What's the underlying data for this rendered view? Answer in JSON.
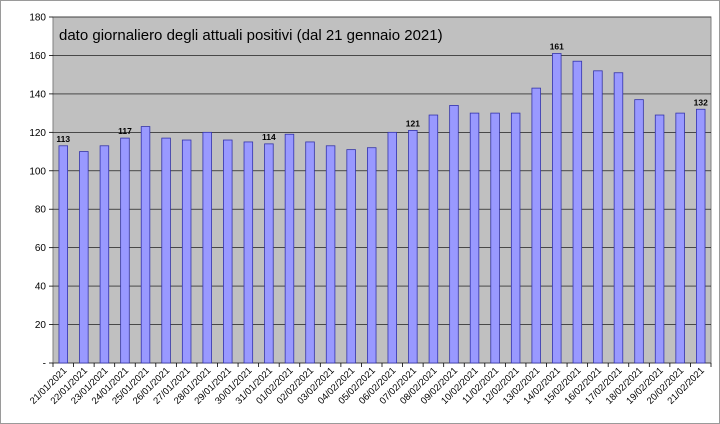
{
  "chart_data": {
    "type": "bar",
    "title": "dato giornaliero degli attuali positivi (dal 21 gennaio 2021)",
    "categories": [
      "21/01/2021",
      "22/01/2021",
      "23/01/2021",
      "24/01/2021",
      "25/01/2021",
      "26/01/2021",
      "27/01/2021",
      "28/01/2021",
      "29/01/2021",
      "30/01/2021",
      "31/01/2021",
      "01/02/2021",
      "02/02/2021",
      "03/02/2021",
      "04/02/2021",
      "05/02/2021",
      "06/02/2021",
      "07/02/2021",
      "08/02/2021",
      "09/02/2021",
      "10/02/2021",
      "11/02/2021",
      "12/02/2021",
      "13/02/2021",
      "14/02/2021",
      "15/02/2021",
      "16/02/2021",
      "17/02/2021",
      "18/02/2021",
      "19/02/2021",
      "20/02/2021",
      "21/02/2021"
    ],
    "values": [
      113,
      110,
      113,
      117,
      123,
      117,
      116,
      120,
      116,
      115,
      114,
      119,
      115,
      113,
      111,
      112,
      120,
      121,
      129,
      134,
      130,
      130,
      130,
      143,
      161,
      157,
      152,
      151,
      137,
      129,
      130,
      132
    ],
    "data_labels": [
      {
        "index": 0,
        "text": "113"
      },
      {
        "index": 3,
        "text": "117"
      },
      {
        "index": 10,
        "text": "114"
      },
      {
        "index": 17,
        "text": "121"
      },
      {
        "index": 24,
        "text": "161"
      },
      {
        "index": 31,
        "text": "132"
      }
    ],
    "yticks": [
      "-",
      "20",
      "40",
      "60",
      "80",
      "100",
      "120",
      "140",
      "160",
      "180"
    ],
    "ylim": [
      0,
      180
    ],
    "grid": true,
    "colors": {
      "bar_fill": "#9999ff",
      "bar_stroke": "#3333aa",
      "plot_background": "#c0c0c0",
      "gridline": "#000000"
    }
  }
}
